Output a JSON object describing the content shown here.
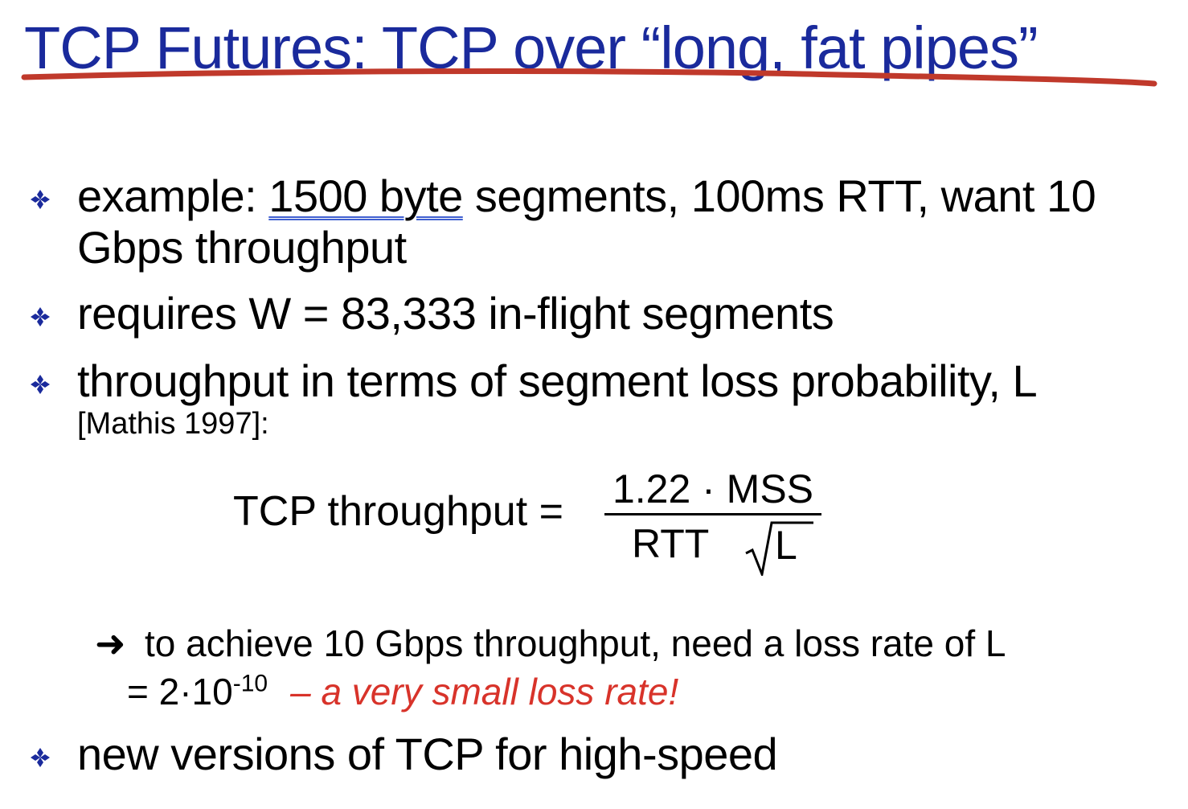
{
  "slide": {
    "title": "TCP Futures: TCP over “long, fat pipes”"
  },
  "colors": {
    "title": "#1a2a9c",
    "title_underline": "#c0392b",
    "bullet_icon": "#1a2a9c",
    "highlight_red": "#d8332a",
    "link_underline": "#3f5fd0"
  },
  "bullets": [
    {
      "icon": "diamond-cluster-icon",
      "prefix": "example: ",
      "underlined": "1500 byte",
      "suffix": " segments, 100ms RTT, want 10 Gbps throughput"
    },
    {
      "icon": "diamond-cluster-icon",
      "text": "requires W = 83,333 in-flight segments"
    },
    {
      "icon": "diamond-cluster-icon",
      "text": "throughput in terms of segment loss probability, L",
      "citation": "[Mathis 1997]:"
    },
    {
      "icon": "diamond-cluster-icon",
      "text": "new versions of TCP for high-speed"
    }
  ],
  "formula": {
    "lhs": "TCP throughput =",
    "numerator": "1.22 · MSS",
    "denominator_left": "RTT",
    "radicand": "L"
  },
  "conclusion": {
    "arrow": "➜",
    "line1": "to achieve 10 Gbps throughput, need a loss rate of L",
    "line2_base": "= 2·10",
    "exponent": "-10",
    "note": "– a very small loss rate!"
  }
}
